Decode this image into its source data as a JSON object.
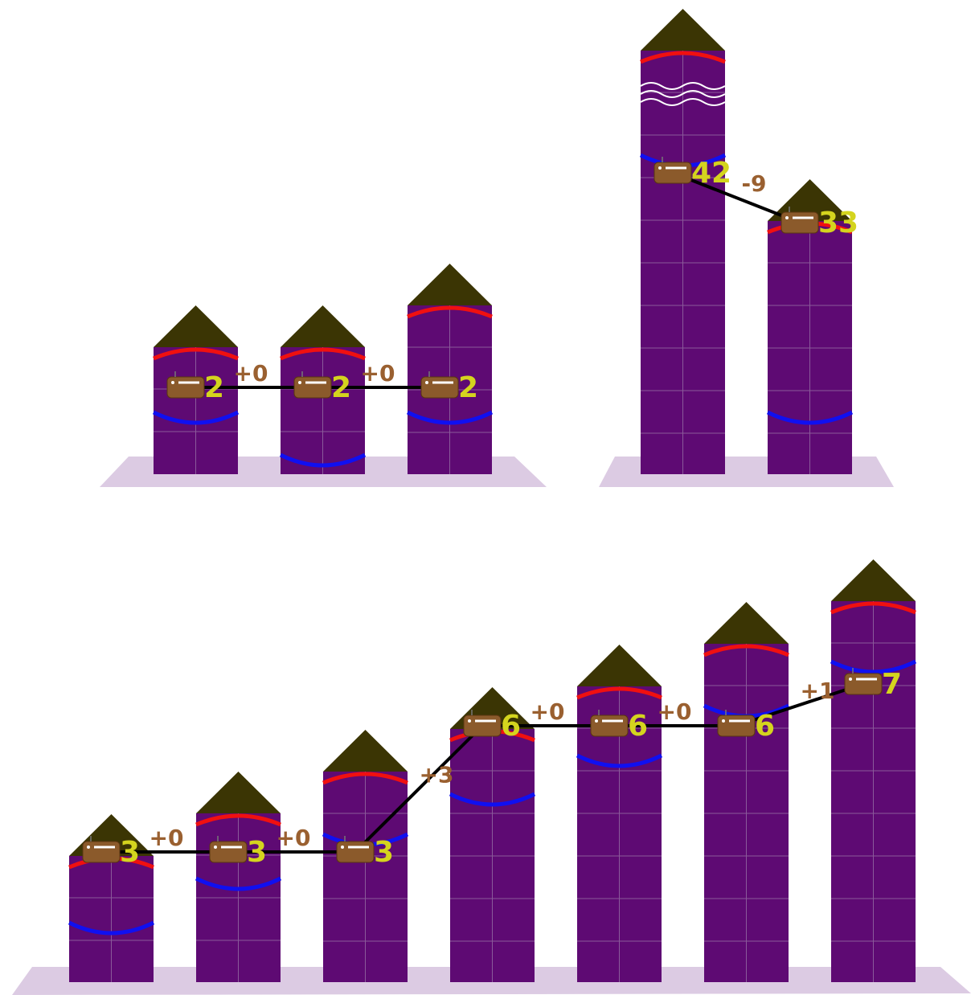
{
  "groups": [
    {
      "values": [
        2,
        2,
        2
      ],
      "changes": [
        "+0",
        "+0"
      ]
    },
    {
      "values": [
        42,
        33
      ],
      "changes": [
        "-9"
      ]
    },
    {
      "values": [
        3,
        3,
        3,
        6,
        6,
        6,
        7
      ],
      "changes": [
        "+0",
        "+0",
        "+3",
        "+0",
        "+0",
        "+1"
      ]
    }
  ]
}
